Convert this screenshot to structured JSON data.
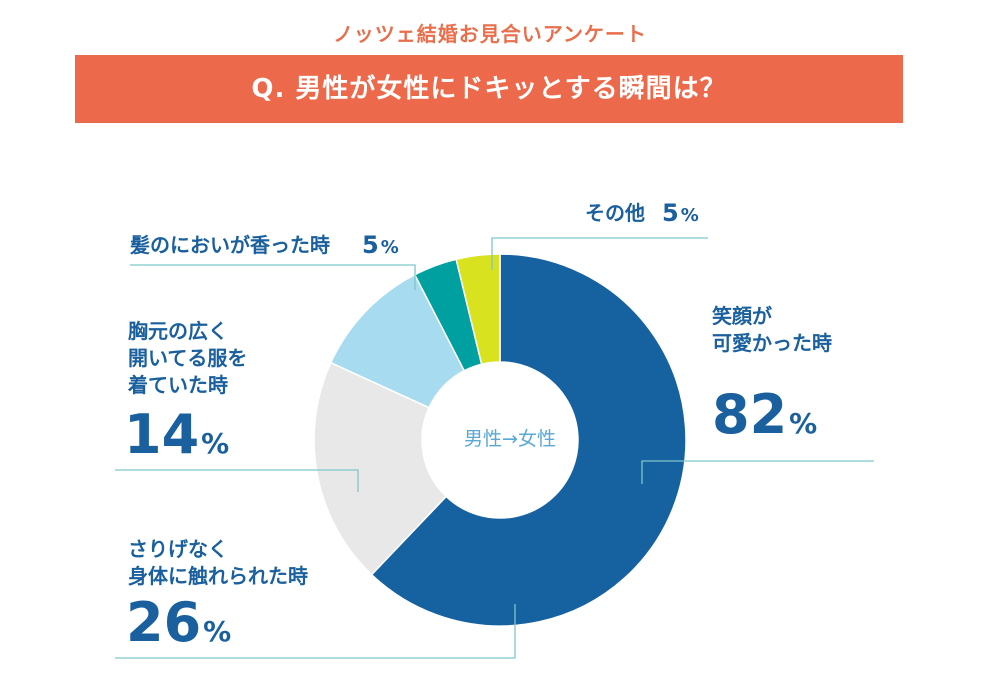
{
  "header": {
    "subtitle": "ノッツェ結婚お見合いアンケート",
    "question": "Q. 男性が女性にドキッとする瞬間は？"
  },
  "chart_data": {
    "type": "donut",
    "center_label": "男性→女性",
    "unit": "%",
    "slices": [
      {
        "label": "笑顔が\n可愛かった時",
        "value": 82,
        "display": "82",
        "color": "#1661a0"
      },
      {
        "label": "さりげなく\n身体に触れられた時",
        "value": 26,
        "display": "26",
        "color": "#e8e8e8"
      },
      {
        "label": "胸元の広く\n開いてる服を\n着ていた時",
        "value": 14,
        "display": "14",
        "color": "#a6dbf0"
      },
      {
        "label": "髪のにおいが香った時",
        "value": 5,
        "display": "5",
        "color": "#00a0a0"
      },
      {
        "label": "その他",
        "value": 5,
        "display": "5",
        "color": "#d9e21e"
      }
    ]
  }
}
